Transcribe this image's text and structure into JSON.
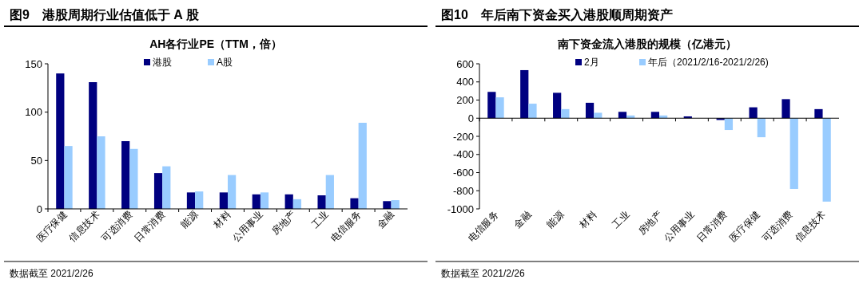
{
  "chart_data": [
    {
      "type": "bar",
      "title": "图9　港股周期行业估值低于 A 股",
      "subtitle": "AH各行业PE（TTM，倍）",
      "categories": [
        "医疗保健",
        "信息技术",
        "可选消费",
        "日常消费",
        "能源",
        "材料",
        "公用事业",
        "房地产",
        "工业",
        "电信服务",
        "金融"
      ],
      "series": [
        {
          "name": "港股",
          "color": "#000080",
          "values": [
            140,
            131,
            70,
            37,
            17,
            17,
            15,
            15,
            14,
            11,
            8
          ]
        },
        {
          "name": "A股",
          "color": "#99ccff",
          "values": [
            65,
            75,
            62,
            44,
            18,
            35,
            17,
            10,
            35,
            89,
            9
          ]
        }
      ],
      "ylim": [
        0,
        150
      ],
      "yticks": [
        0,
        50,
        100,
        150
      ],
      "legend": "top",
      "annotations": [
        "数据截至 2021/2/26"
      ]
    },
    {
      "type": "bar",
      "title": "图10　年后南下资金买入港股顺周期资产",
      "subtitle": "南下资金流入港股的规模（亿港元）",
      "categories": [
        "电信服务",
        "金融",
        "能源",
        "材料",
        "工业",
        "房地产",
        "公用事业",
        "日常消费",
        "医疗保健",
        "可选消费",
        "信息技术"
      ],
      "series": [
        {
          "name": "2月",
          "color": "#000080",
          "values": [
            290,
            530,
            280,
            170,
            70,
            70,
            20,
            -20,
            120,
            210,
            100
          ]
        },
        {
          "name": "年后（2021/2/16-2021/2/26)",
          "color": "#99ccff",
          "values": [
            230,
            160,
            100,
            60,
            30,
            30,
            0,
            -130,
            -210,
            -780,
            -920
          ]
        }
      ],
      "ylim": [
        -1000,
        600
      ],
      "yticks": [
        -1000,
        -800,
        -600,
        -400,
        -200,
        0,
        200,
        400,
        600
      ],
      "legend": "top",
      "annotations": [
        "数据截至 2021/2/26"
      ]
    }
  ]
}
